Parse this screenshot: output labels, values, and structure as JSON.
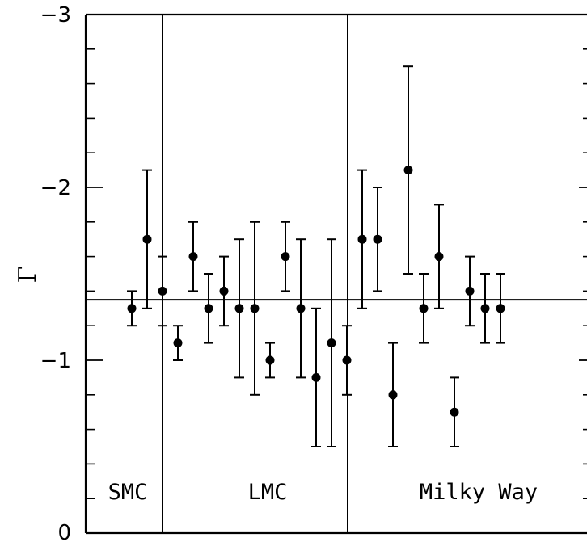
{
  "chart_data": {
    "type": "scatter",
    "title": "",
    "xlabel": "",
    "ylabel": "Γ",
    "ylim": [
      0,
      -3
    ],
    "y_axis_inverted": true,
    "y_ticks": [
      {
        "value": -3,
        "label": "−3"
      },
      {
        "value": -2,
        "label": "−2"
      },
      {
        "value": -1,
        "label": "−1"
      },
      {
        "value": 0,
        "label": "0"
      }
    ],
    "reference_line": {
      "y": -1.35
    },
    "grid": false,
    "groups": [
      {
        "label": "SMC",
        "points": [
          {
            "y": -1.3,
            "yerr": 0.1
          }
        ]
      },
      {
        "label": "LMC",
        "points": [
          {
            "y": -1.7,
            "yerr": 0.4
          },
          {
            "y": -1.4,
            "yerr": 0.2
          },
          {
            "y": -1.1,
            "yerr": 0.1
          },
          {
            "y": -1.6,
            "yerr": 0.2
          },
          {
            "y": -1.3,
            "yerr": 0.2
          },
          {
            "y": -1.4,
            "yerr": 0.2
          },
          {
            "y": -1.3,
            "yerr": 0.4
          },
          {
            "y": -1.3,
            "yerr": 0.5
          },
          {
            "y": -1.0,
            "yerr": 0.1
          },
          {
            "y": -1.6,
            "yerr": 0.2
          }
        ]
      },
      {
        "label": "Milky Way",
        "points": [
          {
            "y": -1.3,
            "yerr": 0.4
          },
          {
            "y": -0.9,
            "yerr": 0.4
          },
          {
            "y": -1.1,
            "yerr": 0.6
          },
          {
            "y": -1.0,
            "yerr": 0.2
          },
          {
            "y": -1.7,
            "yerr": 0.4
          },
          {
            "y": -1.7,
            "yerr": 0.3
          },
          {
            "y": -0.8,
            "yerr": 0.3
          },
          {
            "y": -2.1,
            "yerr": 0.6
          },
          {
            "y": -1.3,
            "yerr": 0.2
          },
          {
            "y": -1.6,
            "yerr": 0.3
          },
          {
            "y": -0.7,
            "yerr": 0.2
          },
          {
            "y": -1.4,
            "yerr": 0.2
          },
          {
            "y": -1.3,
            "yerr": 0.2
          },
          {
            "y": -1.3,
            "yerr": 0.2
          }
        ]
      }
    ]
  }
}
